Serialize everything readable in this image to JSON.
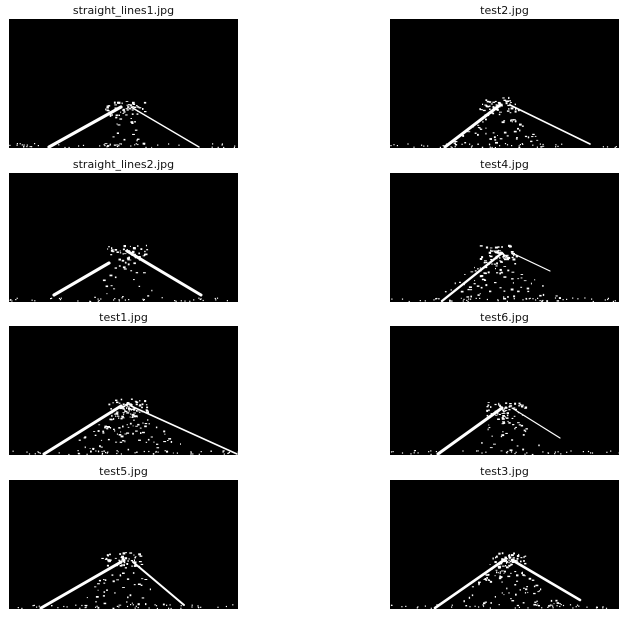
{
  "panels": [
    {
      "title": "straight_lines1.jpg",
      "variant": "a"
    },
    {
      "title": "test2.jpg",
      "variant": "b"
    },
    {
      "title": "straight_lines2.jpg",
      "variant": "c"
    },
    {
      "title": "test4.jpg",
      "variant": "d"
    },
    {
      "title": "test1.jpg",
      "variant": "e"
    },
    {
      "title": "test6.jpg",
      "variant": "f"
    },
    {
      "title": "test5.jpg",
      "variant": "g"
    },
    {
      "title": "test3.jpg",
      "variant": "h"
    }
  ]
}
